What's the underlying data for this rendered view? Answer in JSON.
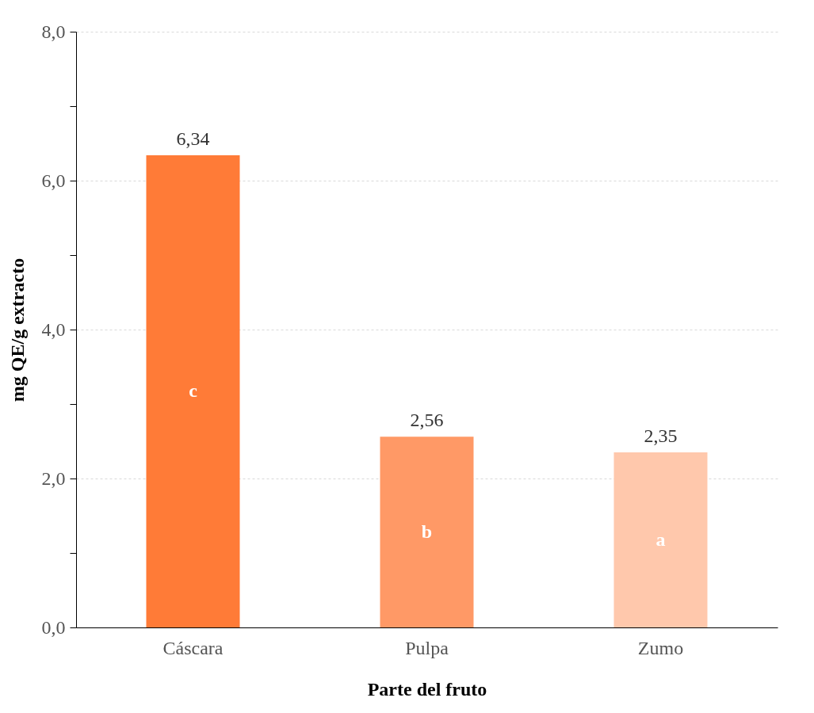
{
  "chart_data": {
    "type": "bar",
    "xlabel": "Parte del fruto",
    "ylabel": "mg QE/g extracto",
    "categories": [
      "Cáscara",
      "Pulpa",
      "Zumo"
    ],
    "values": [
      6.34,
      2.56,
      2.35
    ],
    "colors": [
      "#ff7b37",
      "#ff9966",
      "#ffc8ac"
    ],
    "value_labels": [
      "6,34",
      "2,56",
      "2,35"
    ],
    "ylim": [
      0,
      8
    ],
    "yticks": [
      {
        "value": 0,
        "label": "0,0"
      },
      {
        "value": 1,
        "label": null
      },
      {
        "value": 2,
        "label": "2,0"
      },
      {
        "value": 3,
        "label": null
      },
      {
        "value": 4,
        "label": "4,0"
      },
      {
        "value": 5,
        "label": null
      },
      {
        "value": 6,
        "label": "6,0"
      },
      {
        "value": 7,
        "label": null
      },
      {
        "value": 8,
        "label": "8,0"
      }
    ],
    "grid": "y",
    "annotations": [
      "c",
      "b",
      "a"
    ]
  }
}
